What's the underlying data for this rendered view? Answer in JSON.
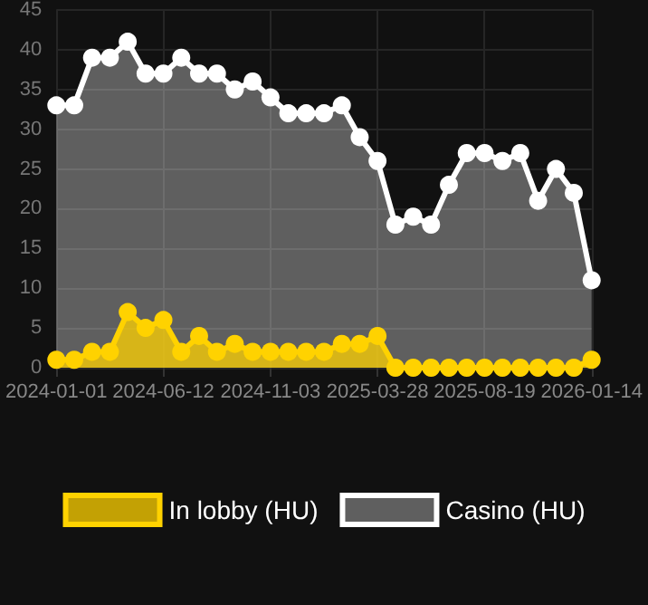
{
  "chart_data": {
    "type": "area",
    "categories": [
      "2024-01-01",
      null,
      null,
      null,
      null,
      null,
      "2024-06-12",
      null,
      null,
      null,
      null,
      null,
      "2024-11-03",
      null,
      null,
      null,
      null,
      null,
      "2025-03-28",
      null,
      null,
      null,
      null,
      null,
      "2025-08-19",
      null,
      null,
      null,
      null,
      null,
      "2026-01-14"
    ],
    "series": [
      {
        "name": "In lobby (HU)",
        "color": "#ffd200",
        "values": [
          1,
          1,
          2,
          2,
          7,
          5,
          6,
          2,
          4,
          2,
          3,
          2,
          2,
          2,
          2,
          2,
          3,
          3,
          4,
          0,
          0,
          0,
          0,
          0,
          0,
          0,
          0,
          0,
          0,
          0,
          1
        ]
      },
      {
        "name": "Casino (HU)",
        "color": "#ffffff",
        "values": [
          33,
          33,
          39,
          39,
          41,
          37,
          37,
          39,
          37,
          37,
          35,
          36,
          34,
          32,
          32,
          32,
          33,
          29,
          26,
          18,
          19,
          18,
          23,
          27,
          27,
          26,
          27,
          21,
          25,
          22,
          11
        ]
      }
    ],
    "ylim": [
      0,
      45
    ],
    "yticks": [
      0,
      5,
      10,
      15,
      20,
      25,
      30,
      35,
      40,
      45
    ],
    "grid": true,
    "legend": "bottom",
    "marker": "circle",
    "line_style": "solid"
  }
}
